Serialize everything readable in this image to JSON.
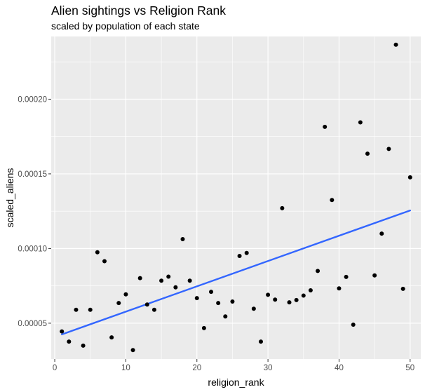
{
  "chart_data": {
    "type": "scatter",
    "title": "Alien sightings vs Religion Rank",
    "subtitle": "scaled by population of each state",
    "xlabel": "religion_rank",
    "ylabel": "scaled_aliens",
    "xlim": [
      -0.5,
      51.5
    ],
    "ylim": [
      2.6e-05,
      0.000242
    ],
    "x_ticks": [
      0,
      10,
      20,
      30,
      40,
      50
    ],
    "x_tick_labels": [
      "0",
      "10",
      "20",
      "30",
      "40",
      "50"
    ],
    "x_minor_ticks": [
      5,
      15,
      25,
      35,
      45
    ],
    "y_ticks": [
      5e-05,
      0.0001,
      0.00015,
      0.0002
    ],
    "y_tick_labels": [
      "0.00005",
      "0.00010",
      "0.00015",
      "0.00020"
    ],
    "y_minor_ticks": [
      7.5e-05,
      0.000125,
      0.000175,
      0.000225
    ],
    "grid": true,
    "legend": "none",
    "colors": {
      "panel_background": "#ebebeb",
      "grid_major": "#ffffff",
      "point": "#000000",
      "trend_line": "#3366ff"
    },
    "series": [
      {
        "kind": "points",
        "x": [
          1,
          2,
          3,
          4,
          5,
          6,
          7,
          8,
          9,
          10,
          11,
          12,
          13,
          14,
          15,
          16,
          17,
          18,
          19,
          20,
          21,
          22,
          23,
          24,
          25,
          26,
          27,
          28,
          29,
          30,
          31,
          32,
          33,
          34,
          35,
          36,
          37,
          38,
          39,
          40,
          41,
          42,
          43,
          44,
          45,
          46,
          47,
          48,
          49,
          50
        ],
        "y": [
          4.45e-05,
          3.77e-05,
          5.9e-05,
          3.5e-05,
          5.9e-05,
          9.75e-05,
          9.15e-05,
          4.05e-05,
          6.35e-05,
          6.93e-05,
          3.2e-05,
          8.02e-05,
          6.25e-05,
          5.9e-05,
          7.85e-05,
          8.12e-05,
          7.4e-05,
          0.0001063,
          7.85e-05,
          6.68e-05,
          4.67e-05,
          7.1e-05,
          6.35e-05,
          5.45e-05,
          6.45e-05,
          9.5e-05,
          9.7e-05,
          5.97e-05,
          3.77e-05,
          6.9e-05,
          6.58e-05,
          0.000127,
          6.4e-05,
          6.55e-05,
          6.85e-05,
          7.2e-05,
          8.5e-05,
          0.0001815,
          0.0001325,
          7.33e-05,
          8.1e-05,
          4.9e-05,
          0.0001845,
          0.0001635,
          8.2e-05,
          0.00011,
          0.0001667,
          0.0002365,
          7.3e-05,
          0.0001477
        ]
      },
      {
        "kind": "linear_fit",
        "x": [
          1,
          50
        ],
        "y": [
          4.25e-05,
          0.0001255
        ]
      }
    ]
  }
}
